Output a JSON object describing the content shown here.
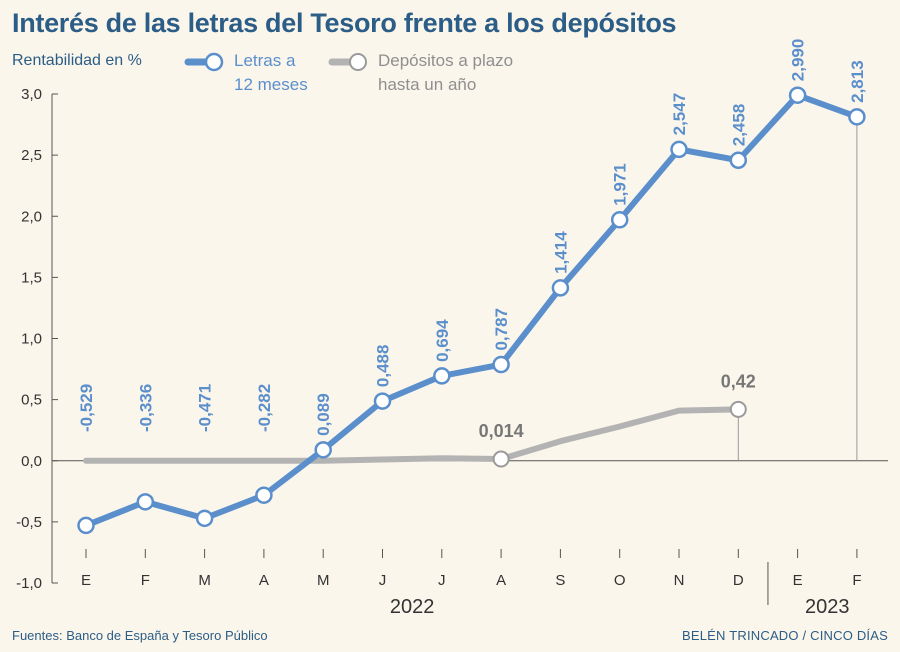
{
  "title": "Interés de las letras del Tesoro frente a los depósitos",
  "footer": {
    "source": "Fuentes: Banco de España y Tesoro Público",
    "credit": "BELÉN TRINCADO / CINCO DÍAS"
  },
  "colors": {
    "background": "#fbf6ec",
    "title": "#2b5d87",
    "letras": "#5b8fcc",
    "depositos": "#b3b3b3",
    "axis": "#555555"
  },
  "chart_data": {
    "type": "line",
    "ylabel": "Rentabilidad en %",
    "ylim": [
      -1.0,
      3.0
    ],
    "y_ticks": [
      "3,0",
      "2,5",
      "2,0",
      "1,5",
      "1,0",
      "0,5",
      "0,0",
      "-0,5",
      "-1,0"
    ],
    "y_tick_values": [
      3.0,
      2.5,
      2.0,
      1.5,
      1.0,
      0.5,
      0.0,
      -0.5,
      -1.0
    ],
    "categories": [
      "E",
      "F",
      "M",
      "A",
      "M",
      "J",
      "J",
      "A",
      "S",
      "O",
      "N",
      "D",
      "E",
      "F"
    ],
    "year_labels": [
      {
        "label": "2022",
        "from": 0,
        "to": 11
      },
      {
        "label": "2023",
        "from": 12,
        "to": 13
      }
    ],
    "legend_placement": "top-left",
    "grid": false,
    "series": [
      {
        "name": "Letras a 12 meses",
        "legend_lines": [
          "Letras a",
          "12 meses"
        ],
        "values": [
          -0.529,
          -0.336,
          -0.471,
          -0.282,
          0.089,
          0.488,
          0.694,
          0.787,
          1.414,
          1.971,
          2.547,
          2.458,
          2.99,
          2.813
        ],
        "labels": [
          "-0,529",
          "-0,336",
          "-0,471",
          "-0,282",
          "0,089",
          "0,488",
          "0,694",
          "0,787",
          "1,414",
          "1,971",
          "2,547",
          "2,458",
          "2,990",
          "2,813"
        ]
      },
      {
        "name": "Depósitos a plazo hasta un año",
        "legend_lines": [
          "Depósitos a plazo",
          "hasta un año"
        ],
        "values": [
          0.0,
          0.0,
          0.0,
          0.0,
          0.0,
          0.01,
          0.02,
          0.014,
          0.16,
          0.28,
          0.41,
          0.42,
          null,
          null
        ],
        "markers": [
          7,
          11
        ],
        "labels": {
          "7": "0,014",
          "11": "0,42"
        }
      }
    ]
  }
}
